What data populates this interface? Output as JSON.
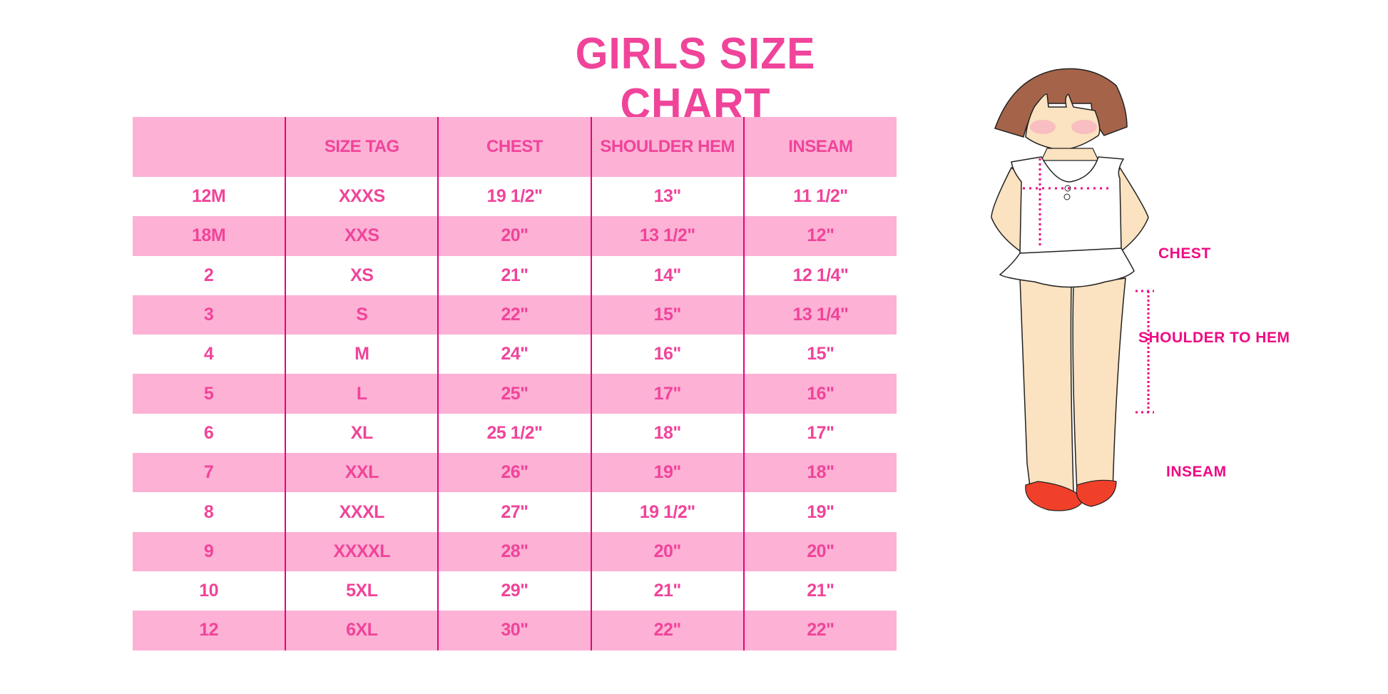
{
  "title": "GIRLS SIZE CHART",
  "table": {
    "headers": [
      "",
      "SIZE TAG",
      "CHEST",
      "SHOULDER HEM",
      "INSEAM"
    ],
    "rows": [
      [
        "12M",
        "XXXS",
        "19 1/2\"",
        "13\"",
        "11 1/2\""
      ],
      [
        "18M",
        "XXS",
        "20\"",
        "13 1/2\"",
        "12\""
      ],
      [
        "2",
        "XS",
        "21\"",
        "14\"",
        "12 1/4\""
      ],
      [
        "3",
        "S",
        "22\"",
        "15\"",
        "13 1/4\""
      ],
      [
        "4",
        "M",
        "24\"",
        "16\"",
        "15\""
      ],
      [
        "5",
        "L",
        "25\"",
        "17\"",
        "16\""
      ],
      [
        "6",
        "XL",
        "25 1/2\"",
        "18\"",
        "17\""
      ],
      [
        "7",
        "XXL",
        "26\"",
        "19\"",
        "18\""
      ],
      [
        "8",
        "XXXL",
        "27\"",
        "19 1/2\"",
        "19\""
      ],
      [
        "9",
        "XXXXL",
        "28\"",
        "20\"",
        "20\""
      ],
      [
        "10",
        "5XL",
        "29\"",
        "21\"",
        "21\""
      ],
      [
        "12",
        "6XL",
        "30\"",
        "22\"",
        "22\""
      ]
    ]
  },
  "figure": {
    "labels": {
      "chest": "CHEST",
      "shoulder_to_hem": "SHOULDER TO HEM",
      "inseam": "INSEAM"
    }
  },
  "colors": {
    "accent": "#f0449a",
    "row_pink": "#fcb1d5",
    "divider": "#e6007e",
    "label": "#ef0a83"
  }
}
